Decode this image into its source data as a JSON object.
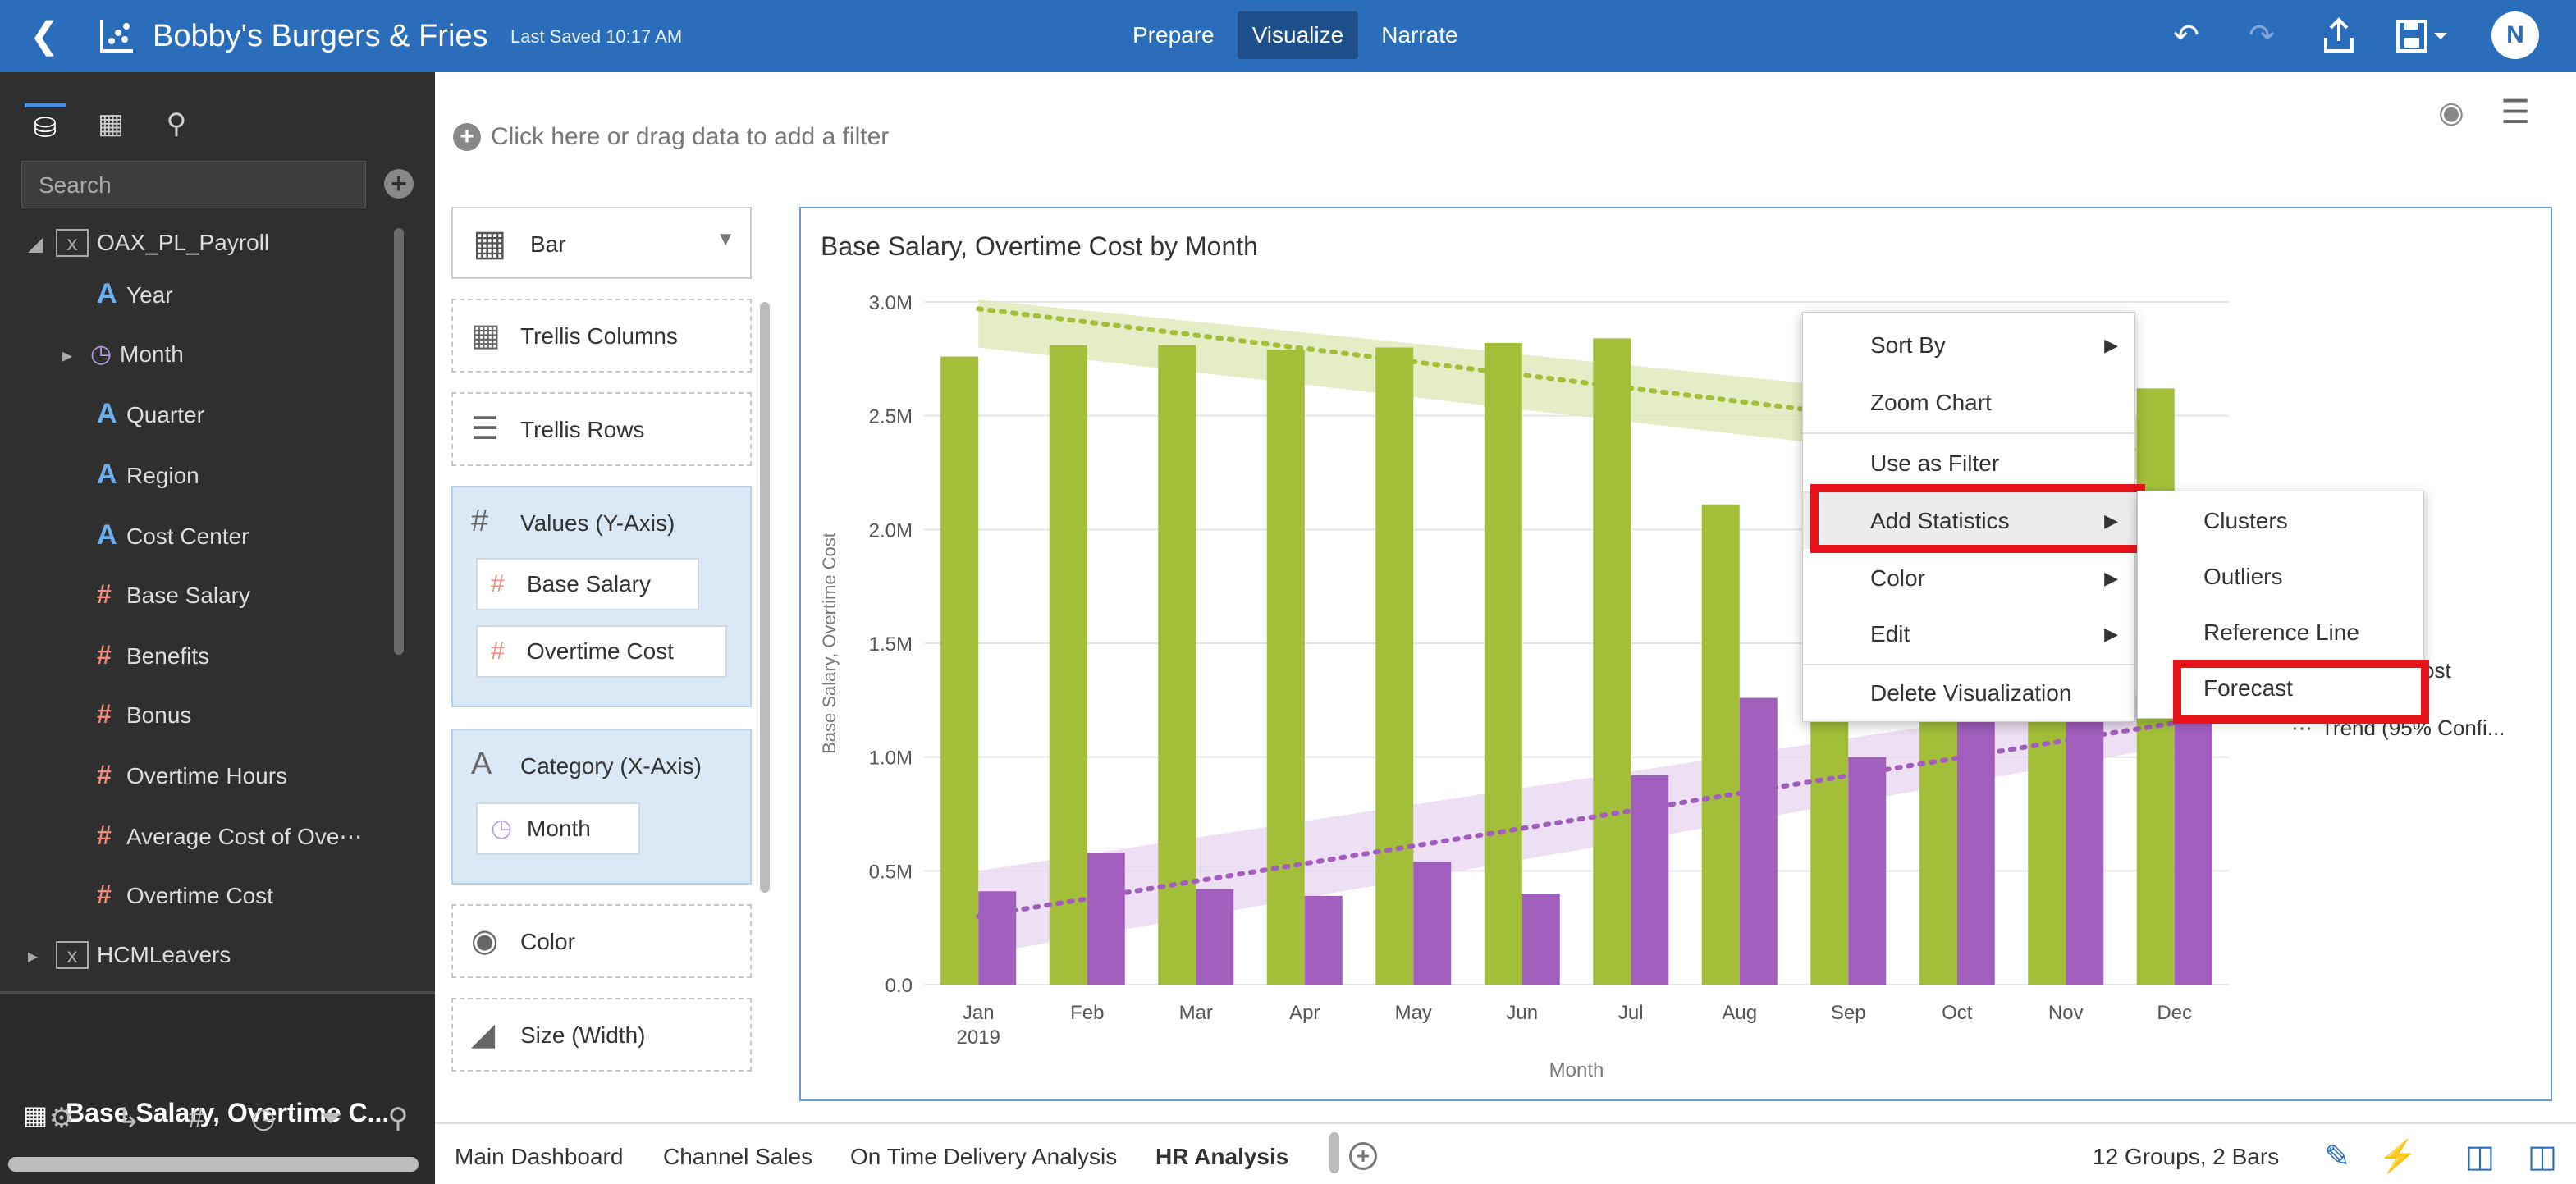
{
  "header": {
    "back_icon": "back-chevron-icon",
    "app_icon": "scatter-chart-icon",
    "title": "Bobby's Burgers & Fries",
    "saved": "Last Saved 10:17 AM",
    "modes": [
      "Prepare",
      "Visualize",
      "Narrate"
    ],
    "active_mode": "Visualize",
    "avatar": "N",
    "accent": "#2a6ebb"
  },
  "data_panel": {
    "search_placeholder": "Search",
    "datasets": [
      {
        "name": "OAX_PL_Payroll",
        "expanded": true
      },
      {
        "name": "HCMLeavers",
        "expanded": false
      }
    ],
    "fields": [
      {
        "label": "Year",
        "kind": "attribute"
      },
      {
        "label": "Month",
        "kind": "time"
      },
      {
        "label": "Quarter",
        "kind": "attribute"
      },
      {
        "label": "Region",
        "kind": "attribute"
      },
      {
        "label": "Cost Center",
        "kind": "attribute"
      },
      {
        "label": "Base Salary",
        "kind": "measure"
      },
      {
        "label": "Benefits",
        "kind": "measure"
      },
      {
        "label": "Bonus",
        "kind": "measure"
      },
      {
        "label": "Overtime Hours",
        "kind": "measure"
      },
      {
        "label": "Average Cost of Ove⋯",
        "kind": "measure"
      },
      {
        "label": "Overtime Cost",
        "kind": "measure"
      }
    ]
  },
  "viz_section": {
    "name": "Base Salary, Overtime C..."
  },
  "filter": {
    "placeholder": "Click here or drag data to add a filter"
  },
  "grammar": {
    "viz_type": "Bar",
    "trellis_columns": "Trellis Columns",
    "trellis_rows": "Trellis Rows",
    "values_label": "Values (Y-Axis)",
    "values": [
      "Base Salary",
      "Overtime Cost"
    ],
    "category_label": "Category (X-Axis)",
    "category": [
      "Month"
    ],
    "color": "Color",
    "size": "Size (Width)"
  },
  "context_menu": {
    "items": [
      "Sort By",
      "Zoom Chart",
      "Use as Filter",
      "Add Statistics",
      "Color",
      "Edit",
      "Delete Visualization"
    ],
    "submenu": [
      "Clusters",
      "Outliers",
      "Reference Line",
      "Forecast"
    ],
    "highlight_color": "#e8141b"
  },
  "legend_fragments": [
    "ry",
    "ost",
    "Trend (95% Confi..."
  ],
  "chart_data": {
    "type": "bar",
    "title": "Base Salary, Overtime Cost by Month",
    "xlabel": "Month",
    "ylabel": "Base Salary, Overtime Cost",
    "categories": [
      "Jan",
      "Feb",
      "Mar",
      "Apr",
      "May",
      "Jun",
      "Jul",
      "Aug",
      "Sep",
      "Oct",
      "Nov",
      "Dec"
    ],
    "year_label": "2019",
    "ylim": [
      0,
      3000000
    ],
    "yticks": [
      {
        "value": 0,
        "label": "0.0"
      },
      {
        "value": 500000,
        "label": "0.5M"
      },
      {
        "value": 1000000,
        "label": "1.0M"
      },
      {
        "value": 1500000,
        "label": "1.5M"
      },
      {
        "value": 2000000,
        "label": "2.0M"
      },
      {
        "value": 2500000,
        "label": "2.5M"
      },
      {
        "value": 3000000,
        "label": "3.0M"
      }
    ],
    "series": [
      {
        "name": "Base Salary",
        "color": "#a3bf3a",
        "values": [
          2760000,
          2810000,
          2810000,
          2790000,
          2800000,
          2820000,
          2840000,
          2110000,
          2560000,
          2700000,
          2650000,
          2620000
        ]
      },
      {
        "name": "Overtime Cost",
        "color": "#a15ebd",
        "values": [
          410000,
          580000,
          420000,
          390000,
          540000,
          400000,
          920000,
          1260000,
          1000000,
          1180000,
          1250000,
          1260000
        ]
      }
    ],
    "trends": [
      {
        "series": "Base Salary",
        "color": "#a3bf3a",
        "band_color": "#dfe8b8",
        "start": 2970000,
        "end": 2330000,
        "band_start": [
          2800000,
          3010000
        ],
        "band_end": [
          2200000,
          2480000
        ]
      },
      {
        "series": "Overtime Cost",
        "color": "#a15ebd",
        "band_color": "#ead8f1",
        "start": 300000,
        "end": 1150000,
        "band_start": [
          130000,
          500000
        ],
        "band_end": [
          1050000,
          1300000
        ]
      }
    ],
    "grid": true,
    "legend_position": "right"
  }
}
